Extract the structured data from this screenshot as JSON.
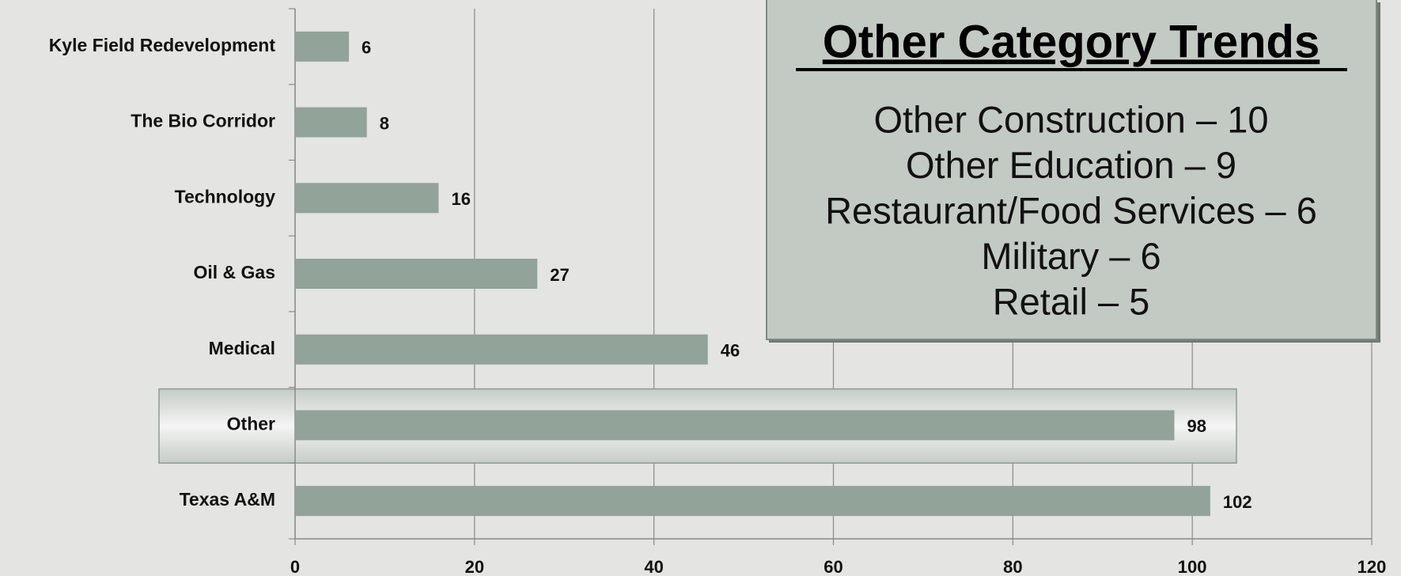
{
  "chart_data": {
    "type": "bar",
    "orientation": "horizontal",
    "categories": [
      "Kyle Field Redevelopment",
      "The Bio Corridor",
      "Technology",
      "Oil & Gas",
      "Medical",
      "Other",
      "Texas A&M"
    ],
    "values": [
      6,
      8,
      16,
      27,
      46,
      98,
      102
    ],
    "color": "#92a399",
    "xlim": [
      0,
      120
    ],
    "xticks": [
      0,
      20,
      40,
      60,
      80,
      100,
      120
    ],
    "grid": true,
    "highlight": "Other",
    "annotation": {
      "title": "Other Category Trends",
      "lines": [
        "Other Construction – 10",
        "Other Education – 9",
        "Restaurant/Food Services – 6",
        "Military – 6",
        "Retail – 5"
      ]
    }
  }
}
